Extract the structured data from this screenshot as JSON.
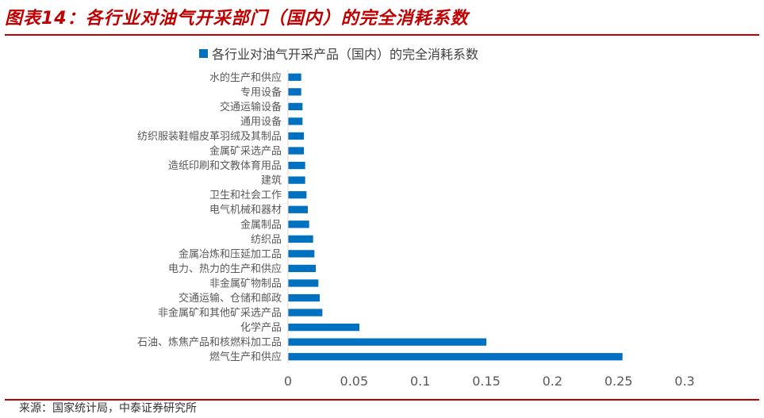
{
  "header": {
    "figure_title": "图表14：各行业对油气开采部门（国内）的完全消耗系数"
  },
  "footer": {
    "source": "来源：国家统计局，中泰证券研究所"
  },
  "colors": {
    "bar": "#0070c0",
    "title_red": "#c00000",
    "axis": "#d9d9d9",
    "text": "#595959"
  },
  "chart_data": {
    "type": "bar",
    "orientation": "horizontal",
    "title": "",
    "legend": "各行业对油气开采产品（国内）的完全消耗系数",
    "legend_position": "top",
    "categories": [
      "水的生产和供应",
      "专用设备",
      "交通运输设备",
      "通用设备",
      "纺织服装鞋帽皮革羽绒及其制品",
      "金属矿采选产品",
      "造纸印刷和文教体育用品",
      "建筑",
      "卫生和社会工作",
      "电气机械和器材",
      "金属制品",
      "纺织品",
      "金属冶炼和压延加工品",
      "电力、热力的生产和供应",
      "非金属矿物制品",
      "交通运输、仓储和邮政",
      "非金属矿和其他矿采选产品",
      "化学产品",
      "石油、炼焦产品和核燃料加工品",
      "燃气生产和供应"
    ],
    "values": [
      0.01,
      0.01,
      0.011,
      0.011,
      0.012,
      0.012,
      0.013,
      0.013,
      0.014,
      0.015,
      0.016,
      0.019,
      0.02,
      0.021,
      0.023,
      0.024,
      0.026,
      0.054,
      0.15,
      0.253
    ],
    "xlabel": "",
    "ylabel": "",
    "xlim": [
      0,
      0.3
    ],
    "xticks": [
      "0",
      "0.05",
      "0.1",
      "0.15",
      "0.2",
      "0.25",
      "0.3"
    ],
    "grid": false
  }
}
